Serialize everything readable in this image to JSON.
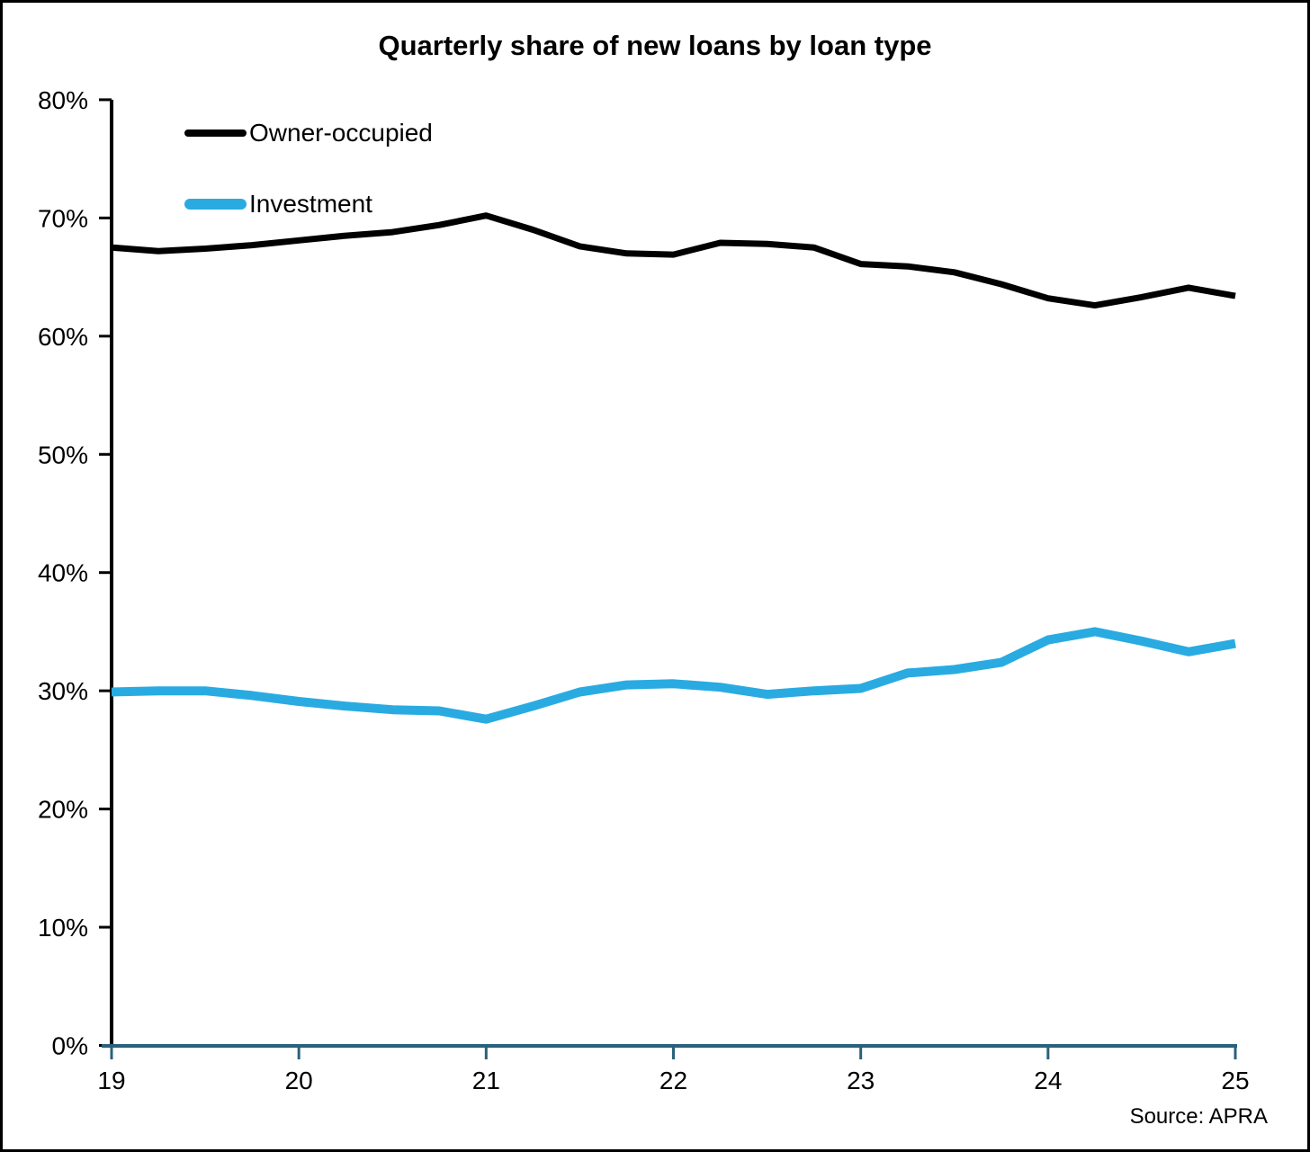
{
  "title": "Quarterly share of new loans by loan type",
  "source": "Source: APRA",
  "legend": {
    "owner_occupied_label": "Owner-occupied",
    "investment_label": "Investment"
  },
  "chart_data": {
    "type": "line",
    "title": "Quarterly share of new loans by loan type",
    "frequency": "quarterly",
    "x_start_year": 19,
    "x_end_year": 25,
    "x_tick_labels": [
      "19",
      "20",
      "21",
      "22",
      "23",
      "24",
      "25"
    ],
    "y_tick_labels": [
      "0%",
      "10%",
      "20%",
      "30%",
      "40%",
      "50%",
      "60%",
      "70%",
      "80%"
    ],
    "ylim": [
      0,
      80
    ],
    "y_tick_step": 10,
    "grid": false,
    "legend_position": "top-left-inside",
    "axis_color_x": "#2A617C",
    "axis_color_y": "#000000",
    "x_quarters": [
      "2019Q1",
      "2019Q2",
      "2019Q3",
      "2019Q4",
      "2020Q1",
      "2020Q2",
      "2020Q3",
      "2020Q4",
      "2021Q1",
      "2021Q2",
      "2021Q3",
      "2021Q4",
      "2022Q1",
      "2022Q2",
      "2022Q3",
      "2022Q4",
      "2023Q1",
      "2023Q2",
      "2023Q3",
      "2023Q4",
      "2024Q1",
      "2024Q2",
      "2024Q3",
      "2024Q4",
      "2025Q1"
    ],
    "series": [
      {
        "name": "Owner-occupied",
        "color": "#000000",
        "stroke_width": 7,
        "values": [
          67.5,
          67.2,
          67.4,
          67.7,
          68.1,
          68.5,
          68.8,
          69.4,
          70.2,
          69.0,
          67.6,
          67.0,
          66.9,
          67.9,
          67.8,
          67.5,
          66.1,
          65.9,
          65.4,
          64.4,
          63.2,
          62.6,
          63.3,
          64.1,
          63.4
        ]
      },
      {
        "name": "Investment",
        "color": "#29ABE2",
        "stroke_width": 10,
        "values": [
          29.9,
          30.0,
          30.0,
          29.6,
          29.1,
          28.7,
          28.4,
          28.3,
          27.6,
          28.7,
          29.9,
          30.5,
          30.6,
          30.3,
          29.7,
          30.0,
          30.2,
          31.5,
          31.8,
          32.4,
          34.3,
          35.0,
          34.2,
          33.3,
          34.0
        ]
      }
    ]
  }
}
